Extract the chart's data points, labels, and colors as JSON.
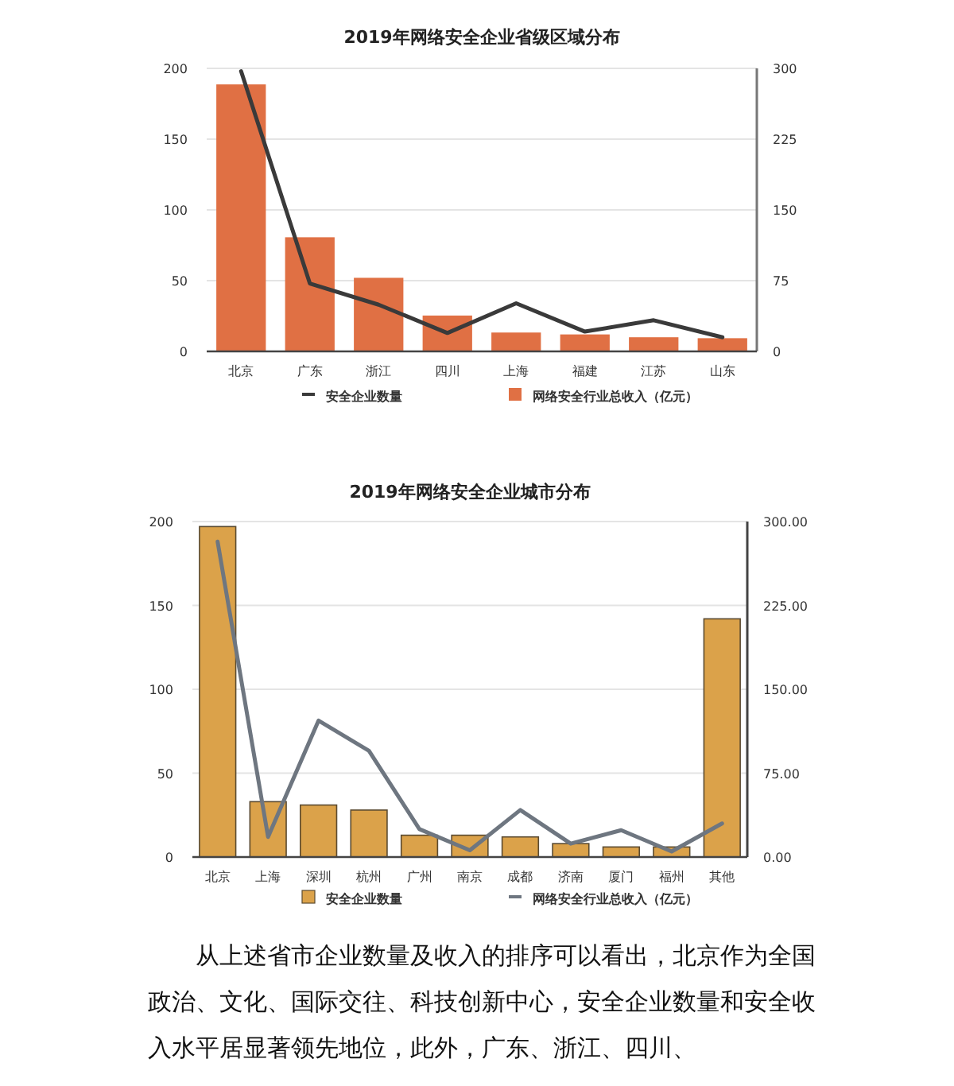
{
  "chart_data": [
    {
      "type": "bar",
      "title": "2019年网络安全企业省级区域分布",
      "categories": [
        "北京",
        "广东",
        "浙江",
        "四川",
        "上海",
        "福建",
        "江苏",
        "山东"
      ],
      "series": [
        {
          "name": "安全企业数量",
          "type": "line",
          "axis": "y",
          "color": "#3a3a3a",
          "values": [
            198,
            48,
            33,
            13,
            34,
            14,
            22,
            10
          ]
        },
        {
          "name": "网络安全行业总收入（亿元）",
          "axis": "y2",
          "color": "#e07044",
          "values": [
            283,
            121,
            78,
            38,
            20,
            18,
            15,
            14
          ]
        }
      ],
      "ylim": [
        0,
        200
      ],
      "yticks": [
        0,
        50,
        100,
        150,
        200
      ],
      "y2lim": [
        0,
        300
      ],
      "y2ticks": [
        0,
        75,
        150,
        225,
        300
      ],
      "grid": "y",
      "legend": "bottom"
    },
    {
      "type": "bar",
      "title": "2019年网络安全企业城市分布",
      "categories": [
        "北京",
        "上海",
        "深圳",
        "杭州",
        "广州",
        "南京",
        "成都",
        "济南",
        "厦门",
        "福州",
        "其他"
      ],
      "series": [
        {
          "name": "安全企业数量",
          "axis": "y",
          "color": "#dba24a",
          "values": [
            197,
            33,
            31,
            28,
            13,
            13,
            12,
            8,
            6,
            6,
            142
          ]
        },
        {
          "name": "网络安全行业总收入（亿元）",
          "type": "line",
          "axis": "y2",
          "color": "#6e7680",
          "values": [
            282,
            18,
            122,
            95,
            25,
            6,
            42,
            12,
            24,
            5,
            30
          ]
        }
      ],
      "ylim": [
        0,
        200
      ],
      "yticks": [
        0,
        50,
        100,
        150,
        200
      ],
      "y2lim": [
        0,
        300
      ],
      "y2ticks": [
        {
          "value": 0,
          "label": "0.00"
        },
        {
          "value": 75,
          "label": "75.00"
        },
        {
          "value": 150,
          "label": "150.00"
        },
        {
          "value": 225,
          "label": "225.00"
        },
        {
          "value": 300,
          "label": "300.00"
        }
      ],
      "grid": "y",
      "legend": "bottom",
      "annotations": [
        "从上述省市企业数量及收入的排序可以看出，北京作为全国政治、文化、国际交往、科技创新中心，安全企业数量和安全收入水平居显著领先地位，此外，广东、浙江、四川、"
      ]
    }
  ]
}
